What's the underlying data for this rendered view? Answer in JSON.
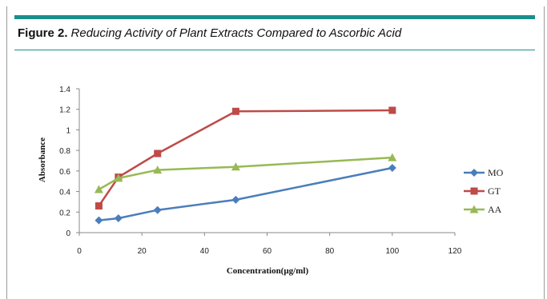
{
  "figure": {
    "label": "Figure 2.",
    "caption": "Reducing Activity of Plant Extracts Compared to Ascorbic Acid",
    "accent_color": "#1a8f8c"
  },
  "chart_data": {
    "type": "line",
    "title": "",
    "xlabel": "Concentration(µg/ml)",
    "ylabel": "Absorbance",
    "xlim": [
      0,
      120
    ],
    "ylim": [
      0,
      1.4
    ],
    "x_ticks": [
      "0",
      "20",
      "40",
      "60",
      "80",
      "100",
      "120"
    ],
    "y_ticks": [
      "0",
      "0.2",
      "0.4",
      "0.6",
      "0.8",
      "1",
      "1.2",
      "1.4"
    ],
    "grid": false,
    "legend_position": "right",
    "x": [
      6.25,
      12.5,
      25,
      50,
      100
    ],
    "series": [
      {
        "name": "MO",
        "values": [
          0.12,
          0.14,
          0.22,
          0.32,
          0.63
        ],
        "color": "#4a7ebb",
        "marker": "diamond"
      },
      {
        "name": "GT",
        "values": [
          0.26,
          0.54,
          0.77,
          1.18,
          1.19
        ],
        "color": "#be4b48",
        "marker": "square"
      },
      {
        "name": "AA",
        "values": [
          0.42,
          0.53,
          0.61,
          0.64,
          0.73
        ],
        "color": "#98b954",
        "marker": "triangle"
      }
    ]
  }
}
